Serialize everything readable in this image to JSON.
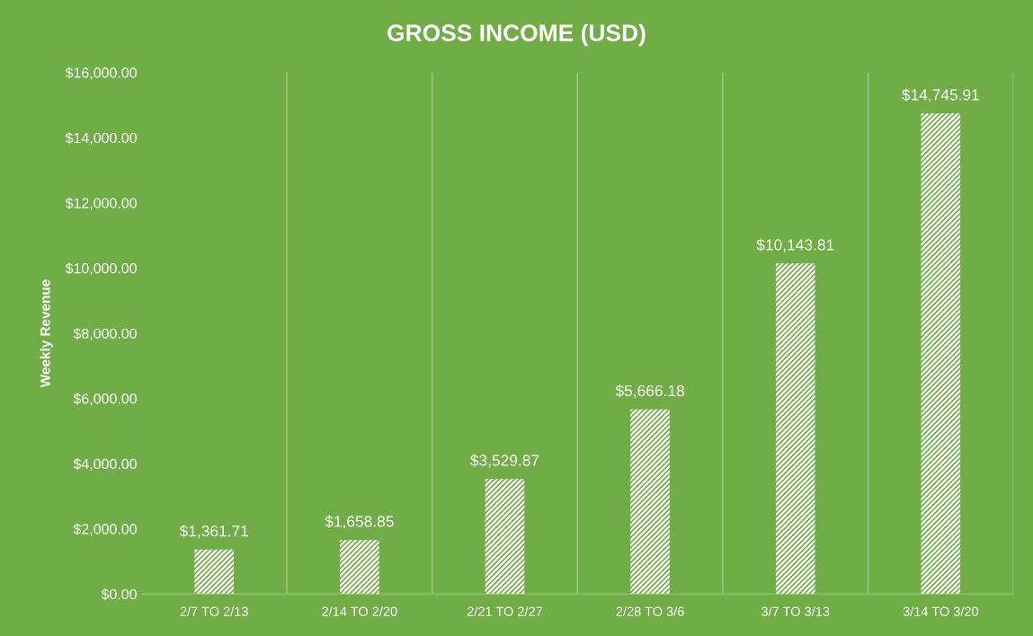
{
  "chart_data": {
    "type": "bar",
    "title": "GROSS INCOME (USD)",
    "ylabel": "Weekly Revenue",
    "categories": [
      "2/7 TO 2/13",
      "2/14 TO 2/20",
      "2/21 TO 2/27",
      "2/28 TO 3/6",
      "3/7 TO 3/13",
      "3/14 TO 3/20"
    ],
    "values": [
      1361.71,
      1658.85,
      3529.87,
      5666.18,
      10143.81,
      14745.91
    ],
    "value_labels": [
      "$1,361.71",
      "$1,658.85",
      "$3,529.87",
      "$5,666.18",
      "$10,143.81",
      "$14,745.91"
    ],
    "color": "#ffffff",
    "ylim": [
      0,
      16000
    ],
    "yticks": [
      {
        "value": 0,
        "label": "$0.00"
      },
      {
        "value": 2000,
        "label": "$2,000.00"
      },
      {
        "value": 4000,
        "label": "$4,000.00"
      },
      {
        "value": 6000,
        "label": "$6,000.00"
      },
      {
        "value": 8000,
        "label": "$8,000.00"
      },
      {
        "value": 10000,
        "label": "$10,000.00"
      },
      {
        "value": 12000,
        "label": "$12,000.00"
      },
      {
        "value": 14000,
        "label": "$14,000.00"
      },
      {
        "value": 16000,
        "label": "$16,000.00"
      }
    ],
    "grid": "x",
    "legend": false
  }
}
